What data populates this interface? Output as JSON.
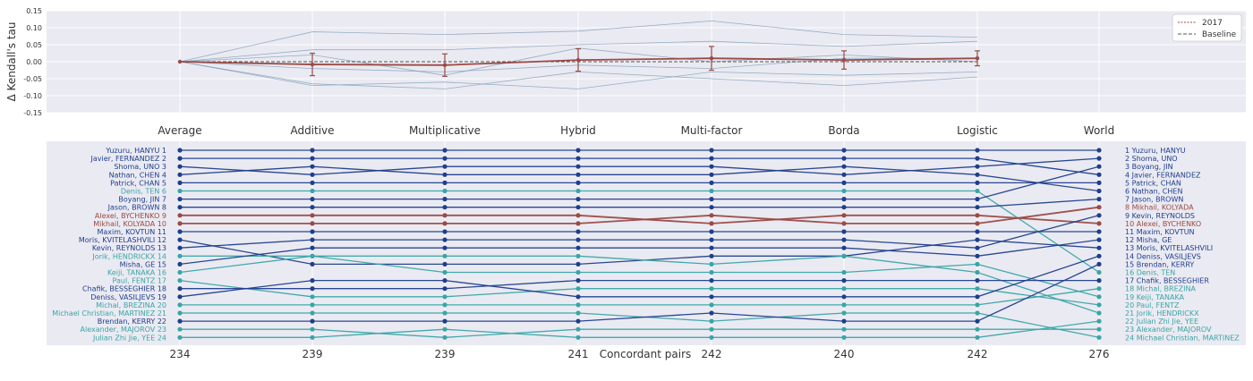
{
  "chart_data": [
    {
      "type": "line",
      "ylabel": "Δ Kendall's tau",
      "ylim": [
        -0.15,
        0.15
      ],
      "yticks": [
        "0.15",
        "0.10",
        "0.05",
        "0.00",
        "-0.05",
        "-0.10",
        "-0.15"
      ],
      "ytick_values": [
        0.15,
        0.1,
        0.05,
        0.0,
        -0.05,
        -0.1,
        -0.15
      ],
      "categories": [
        "Average",
        "Additive",
        "Multiplicative",
        "Hybrid",
        "Multi-factor",
        "Borda",
        "Logistic",
        "World"
      ],
      "legend": {
        "position": "top-right",
        "entries": [
          "2017",
          "Baseline"
        ]
      },
      "grid": true,
      "series": [
        {
          "name": "2017",
          "x": [
            0,
            1,
            2,
            3,
            4,
            5,
            6
          ],
          "values": [
            0.0,
            -0.008,
            -0.01,
            0.005,
            0.01,
            0.005,
            0.01
          ],
          "error": [
            0.0,
            0.033,
            0.033,
            0.033,
            0.035,
            0.027,
            0.022
          ],
          "color": "#9a4a45"
        },
        {
          "name": "Baseline",
          "x": [
            0,
            1,
            2,
            3,
            4,
            5,
            6
          ],
          "values": [
            0.0,
            0.0,
            0.0,
            0.0,
            0.0,
            0.0,
            0.0
          ],
          "color": "#555555"
        }
      ],
      "other_seasons": [
        [
          0.0,
          0.088,
          0.08,
          0.09,
          0.12,
          0.08,
          0.072
        ],
        [
          0.0,
          0.035,
          0.035,
          0.05,
          0.06,
          0.045,
          0.06
        ],
        [
          0.0,
          -0.02,
          -0.03,
          -0.01,
          -0.02,
          0.01,
          0.01
        ],
        [
          0.0,
          -0.065,
          -0.08,
          -0.03,
          -0.05,
          -0.07,
          -0.045
        ],
        [
          0.0,
          -0.07,
          -0.06,
          -0.08,
          -0.03,
          -0.04,
          -0.03
        ],
        [
          0.0,
          0.02,
          -0.04,
          0.04,
          0.0,
          0.02,
          0.0
        ]
      ]
    },
    {
      "type": "slope",
      "xlabel": "Concordant pairs",
      "columns": [
        "Average",
        "Additive",
        "Multiplicative",
        "Hybrid",
        "Multi-factor",
        "Borda",
        "Logistic",
        "World"
      ],
      "concordant_pairs": [
        "234",
        "239",
        "239",
        "241",
        "242",
        "240",
        "242",
        "276"
      ],
      "left_labels": [
        "Yuzuru, HANYU 1",
        "Javier, FERNANDEZ 2",
        "Shoma, UNO 3",
        "Nathan, CHEN 4",
        "Patrick, CHAN 5",
        "Denis, TEN 6",
        "Boyang, JIN 7",
        "Jason, BROWN 8",
        "Alexei, BYCHENKO 9",
        "Mikhail, KOLYADA 10",
        "Maxim, KOVTUN 11",
        "Moris, KVITELASHVILI 12",
        "Kevin, REYNOLDS 13",
        "Jorik, HENDRICKX 14",
        "Misha, GE 15",
        "Keiji, TANAKA 16",
        "Paul, FENTZ 17",
        "Chafik, BESSEGHIER 18",
        "Deniss, VASILJEVS 19",
        "Michal, BREZINA 20",
        "Michael Christian, MARTINEZ 21",
        "Brendan, KERRY 22",
        "Alexander, MAJOROV 23",
        "Julian Zhi Jie, YEE 24"
      ],
      "right_labels": [
        "1 Yuzuru, HANYU",
        "2 Shoma, UNO",
        "3 Boyang, JIN",
        "4 Javier, FERNANDEZ",
        "5 Patrick, CHAN",
        "6 Nathan, CHEN",
        "7 Jason, BROWN",
        "8 Mikhail, KOLYADA",
        "9 Kevin, REYNOLDS",
        "10 Alexei, BYCHENKO",
        "11 Maxim, KOVTUN",
        "12 Misha, GE",
        "13 Moris, KVITELASHVILI",
        "14 Deniss, VASILJEVS",
        "15 Brendan, KERRY",
        "16 Denis, TEN",
        "17 Chafik, BESSEGHIER",
        "18 Michal, BREZINA",
        "19 Keiji, TANAKA",
        "20 Paul, FENTZ",
        "21 Jorik, HENDRICKX",
        "22 Julian Zhi Jie, YEE",
        "23 Alexander, MAJOROV",
        "24 Michael Christian, MARTINEZ"
      ],
      "colors": {
        "top": "#1f3e8c",
        "highlight": "#9a4a45",
        "lower": "#3aa5a5"
      },
      "skaters": [
        {
          "ranks": [
            1,
            1,
            1,
            1,
            1,
            1,
            1,
            1
          ],
          "color": "top"
        },
        {
          "ranks": [
            2,
            2,
            2,
            2,
            2,
            2,
            2,
            4
          ],
          "color": "top"
        },
        {
          "ranks": [
            3,
            4,
            3,
            3,
            3,
            4,
            3,
            2
          ],
          "color": "top"
        },
        {
          "ranks": [
            4,
            3,
            4,
            4,
            4,
            3,
            4,
            6
          ],
          "color": "top"
        },
        {
          "ranks": [
            5,
            5,
            5,
            5,
            5,
            5,
            5,
            5
          ],
          "color": "top"
        },
        {
          "ranks": [
            6,
            6,
            6,
            6,
            6,
            6,
            6,
            16
          ],
          "color": "lower"
        },
        {
          "ranks": [
            7,
            7,
            7,
            7,
            7,
            7,
            7,
            3
          ],
          "color": "top"
        },
        {
          "ranks": [
            8,
            8,
            8,
            8,
            8,
            8,
            8,
            7
          ],
          "color": "top"
        },
        {
          "ranks": [
            9,
            9,
            9,
            9,
            10,
            9,
            9,
            10
          ],
          "color": "highlight"
        },
        {
          "ranks": [
            10,
            10,
            10,
            10,
            9,
            10,
            10,
            8
          ],
          "color": "highlight"
        },
        {
          "ranks": [
            11,
            11,
            11,
            11,
            11,
            11,
            11,
            11
          ],
          "color": "top"
        },
        {
          "ranks": [
            12,
            15,
            15,
            15,
            14,
            14,
            12,
            13
          ],
          "color": "top"
        },
        {
          "ranks": [
            13,
            12,
            12,
            12,
            12,
            12,
            13,
            9
          ],
          "color": "top"
        },
        {
          "ranks": [
            14,
            14,
            14,
            14,
            15,
            14,
            16,
            21
          ],
          "color": "lower"
        },
        {
          "ranks": [
            15,
            13,
            13,
            13,
            13,
            13,
            14,
            12
          ],
          "color": "top"
        },
        {
          "ranks": [
            16,
            14,
            16,
            16,
            16,
            16,
            15,
            19
          ],
          "color": "lower"
        },
        {
          "ranks": [
            17,
            19,
            19,
            18,
            18,
            18,
            18,
            20
          ],
          "color": "lower"
        },
        {
          "ranks": [
            18,
            18,
            18,
            17,
            17,
            17,
            17,
            17
          ],
          "color": "top"
        },
        {
          "ranks": [
            19,
            17,
            17,
            19,
            19,
            19,
            19,
            14
          ],
          "color": "top"
        },
        {
          "ranks": [
            20,
            20,
            20,
            20,
            20,
            20,
            20,
            18
          ],
          "color": "lower"
        },
        {
          "ranks": [
            21,
            21,
            21,
            21,
            22,
            21,
            21,
            24
          ],
          "color": "lower"
        },
        {
          "ranks": [
            22,
            22,
            22,
            22,
            21,
            22,
            22,
            15
          ],
          "color": "top"
        },
        {
          "ranks": [
            23,
            23,
            24,
            23,
            23,
            23,
            23,
            23
          ],
          "color": "lower"
        },
        {
          "ranks": [
            24,
            24,
            23,
            24,
            24,
            24,
            24,
            22
          ],
          "color": "lower"
        }
      ]
    }
  ]
}
